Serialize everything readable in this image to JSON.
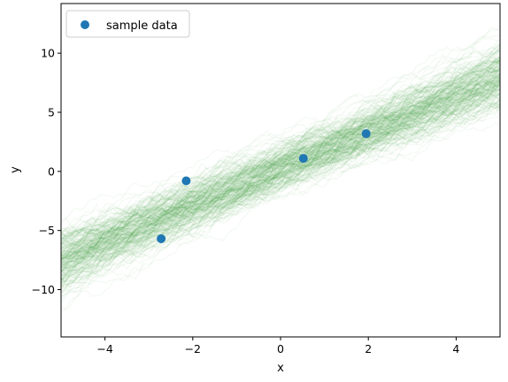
{
  "chart_data": {
    "type": "scatter",
    "title": "",
    "xlabel": "x",
    "ylabel": "y",
    "xlim": [
      -5,
      5
    ],
    "ylim": [
      -14,
      14.2
    ],
    "xticks": [
      -4,
      -2,
      0,
      2,
      4
    ],
    "yticks": [
      -10,
      -5,
      0,
      5,
      10
    ],
    "xtick_labels": [
      "−4",
      "−2",
      "0",
      "2",
      "4"
    ],
    "ytick_labels": [
      "−10",
      "−5",
      "0",
      "5",
      "10"
    ],
    "grid": false,
    "legend": {
      "position": "top-left",
      "entries": [
        "sample data"
      ]
    },
    "series": [
      {
        "name": "sample data",
        "color": "#1f77b4",
        "x": [
          -2.72,
          -2.15,
          0.52,
          1.95
        ],
        "y": [
          -5.7,
          -0.8,
          1.1,
          3.2
        ]
      }
    ],
    "band": {
      "description_color": "#2ca02c",
      "center_intercept": 0.2,
      "center_slope": 1.55,
      "spread": 2.0
    }
  }
}
